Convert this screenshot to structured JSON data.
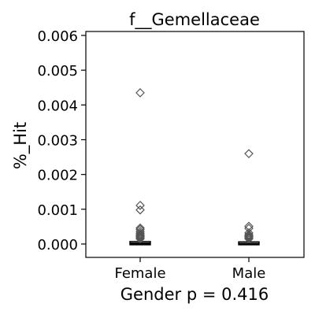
{
  "chart_data": {
    "type": "box",
    "title": "f__Gemellaceae",
    "xlabel": "Gender p = 0.416",
    "ylabel": "%_Hit",
    "categories": [
      "Female",
      "Male"
    ],
    "ylim": [
      -0.0004,
      0.0061
    ],
    "yticks": [
      "0.000",
      "0.001",
      "0.002",
      "0.003",
      "0.004",
      "0.005",
      "0.006"
    ],
    "ytick_values": [
      0.0,
      0.001,
      0.002,
      0.003,
      0.004,
      0.005,
      0.006
    ],
    "grid": false,
    "boxes": [
      {
        "category": "Female",
        "q1": 0.0,
        "median": 3e-05,
        "q3": 5e-05,
        "whisker_low": 0.0,
        "whisker_high": 9e-05
      },
      {
        "category": "Male",
        "q1": 0.0,
        "median": 2e-05,
        "q3": 4e-05,
        "whisker_low": 0.0,
        "whisker_high": 8e-05
      }
    ],
    "outliers": [
      {
        "category": "Female",
        "values": [
          0.00435,
          0.00111,
          0.00098,
          0.00046,
          0.00042,
          0.00036,
          0.00031,
          0.00027,
          0.00024,
          0.00021,
          0.00018,
          0.00015
        ]
      },
      {
        "category": "Male",
        "values": [
          0.0026,
          0.00051,
          0.00045,
          0.00032,
          0.00027,
          0.00024,
          0.00021,
          0.00018,
          0.00015
        ]
      }
    ],
    "colors": {
      "marker": "#555555",
      "box": "#000000",
      "axis": "#000000"
    }
  }
}
